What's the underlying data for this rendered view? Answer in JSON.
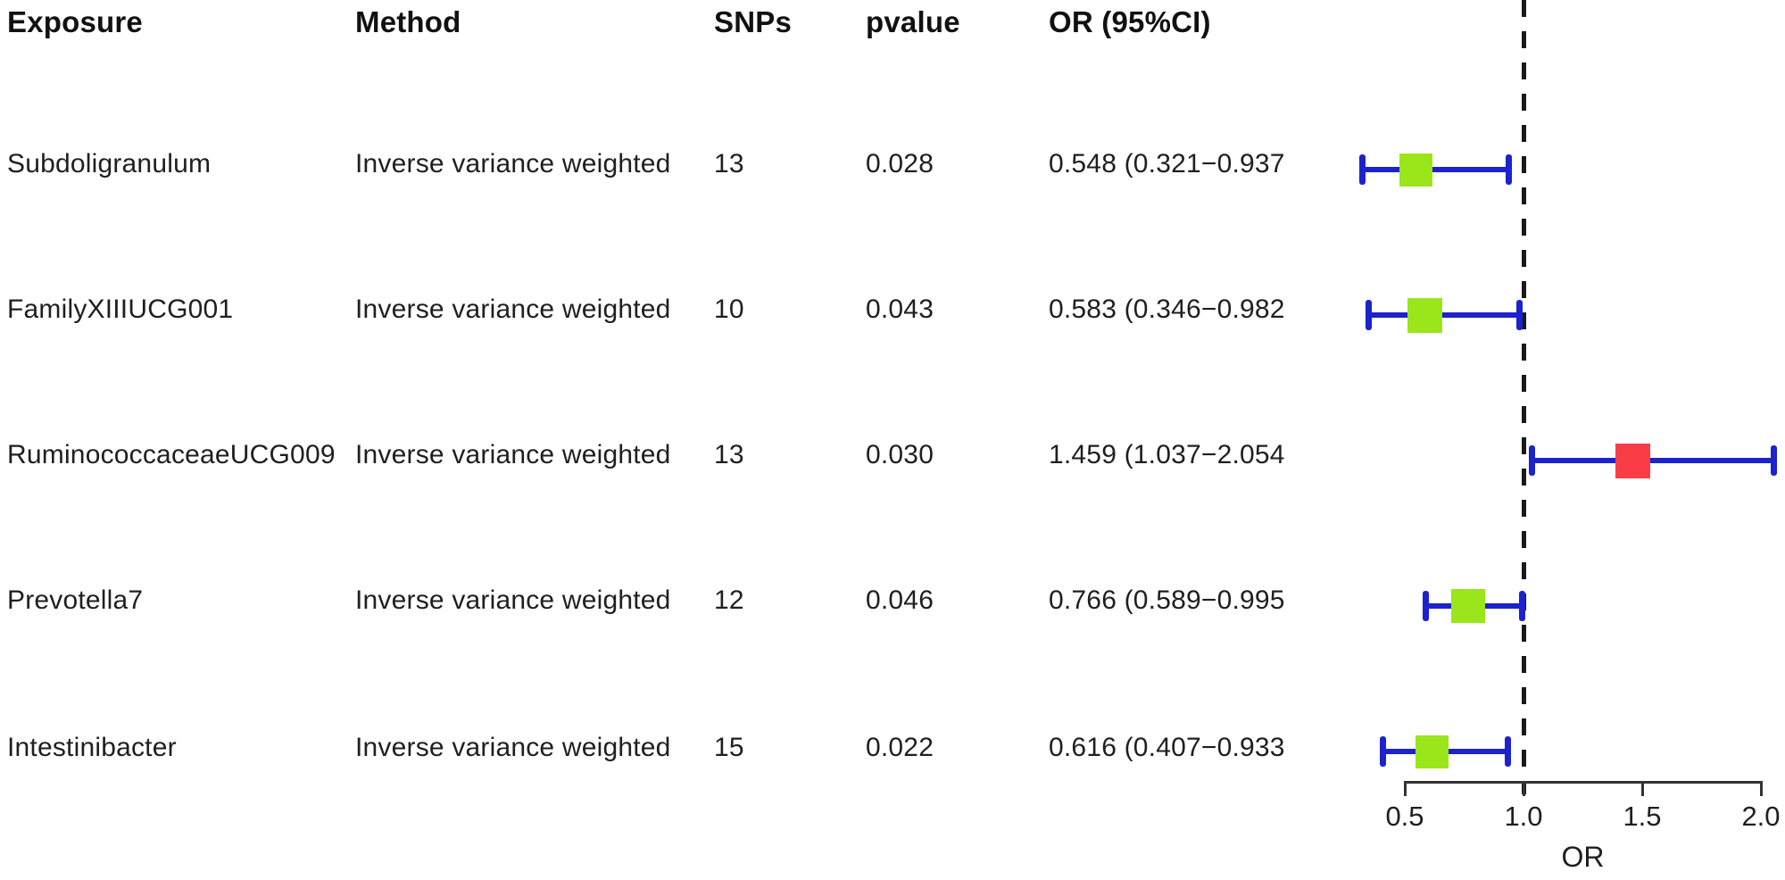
{
  "header": {
    "exposure": "Exposure",
    "method": "Method",
    "snps": "SNPs",
    "pvalue": "pvalue",
    "or_ci": "OR (95%CI)"
  },
  "colors": {
    "error_bar": "#1c22cc",
    "protective_marker": "#9ae61a",
    "risk_marker": "#fa3c46",
    "refline": "#1a1a1a",
    "axis": "#333333",
    "text": "#1f1f1f"
  },
  "chart_data": {
    "type": "forest",
    "title": "",
    "xlabel": "OR",
    "legend": "none",
    "axis": {
      "min": 0.5,
      "max": 2.0,
      "tick_labels": [
        "0.5",
        "1.0",
        "1.5",
        "2.0"
      ],
      "tick_values": [
        0.5,
        1.0,
        1.5,
        2.0
      ],
      "refline": 1.0,
      "refline_style": "dashed"
    },
    "rows": [
      {
        "exposure": "Subdoligranulum",
        "method": "Inverse variance weighted",
        "snps": "13",
        "pvalue": "0.028",
        "or_ci": "0.548 (0.321−0.937",
        "or": 0.548,
        "ci_low": 0.321,
        "ci_high": 0.937,
        "marker": "protective_marker",
        "marker_size": 37
      },
      {
        "exposure": "FamilyXIIIUCG001",
        "method": "Inverse variance weighted",
        "snps": "10",
        "pvalue": "0.043",
        "or_ci": "0.583 (0.346−0.982",
        "or": 0.583,
        "ci_low": 0.346,
        "ci_high": 0.982,
        "marker": "protective_marker",
        "marker_size": 39
      },
      {
        "exposure": "RuminococcaceaeUCG009",
        "method": "Inverse variance weighted",
        "snps": "13",
        "pvalue": "0.030",
        "or_ci": "1.459 (1.037−2.054",
        "or": 1.459,
        "ci_low": 1.037,
        "ci_high": 2.054,
        "marker": "risk_marker",
        "marker_size": 39
      },
      {
        "exposure": "Prevotella7",
        "method": "Inverse variance weighted",
        "snps": "12",
        "pvalue": "0.046",
        "or_ci": "0.766 (0.589−0.995",
        "or": 0.766,
        "ci_low": 0.589,
        "ci_high": 0.995,
        "marker": "protective_marker",
        "marker_size": 38
      },
      {
        "exposure": "Intestinibacter",
        "method": "Inverse variance weighted",
        "snps": "15",
        "pvalue": "0.022",
        "or_ci": "0.616 (0.407−0.933",
        "or": 0.616,
        "ci_low": 0.407,
        "ci_high": 0.933,
        "marker": "protective_marker",
        "marker_size": 37
      }
    ]
  }
}
